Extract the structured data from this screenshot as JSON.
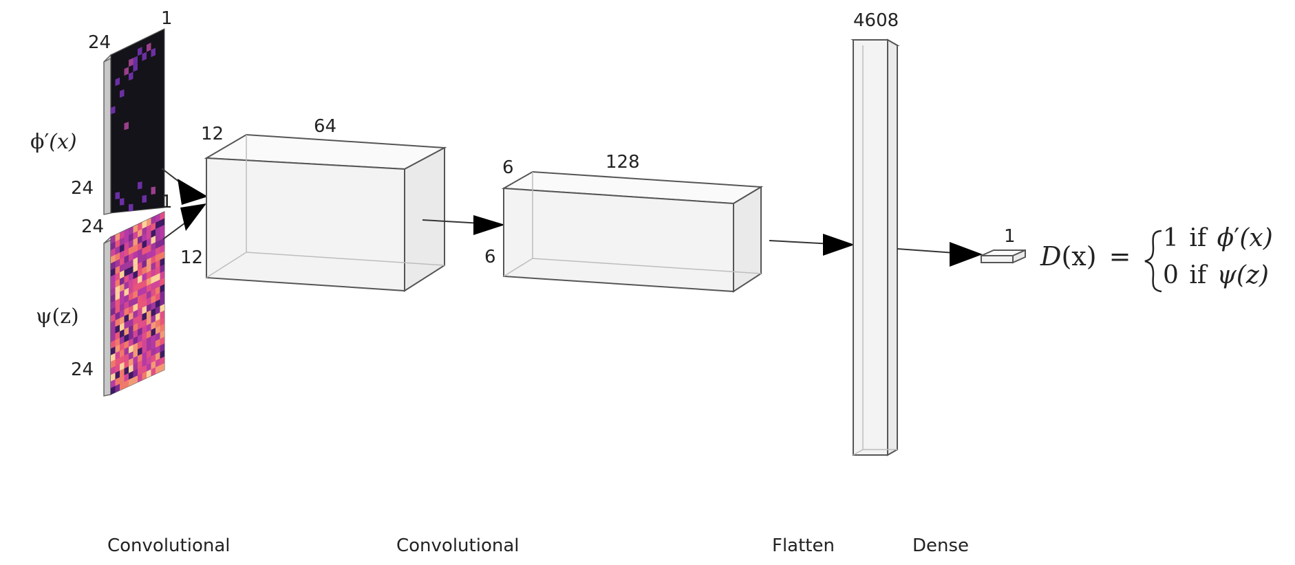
{
  "inputs": {
    "real": {
      "label_phi": "ϕ",
      "label_prime": "′",
      "label_arg": "(x)",
      "dim_top": "24",
      "dim_depth": "1",
      "dim_bottom": "24",
      "colors": {
        "background": "#141319",
        "pixel": "#6b2fa3"
      }
    },
    "fake": {
      "label_psi": "ψ",
      "label_arg": "(z)",
      "dim_top": "24",
      "dim_depth": "1",
      "dim_bottom": "24",
      "colors": [
        "#e8567a",
        "#d14596",
        "#b53aa6",
        "#f07a6a",
        "#a2379c",
        "#f29a76",
        "#7e2a8f",
        "#e04f86",
        "#fbd29a",
        "#3d1a63"
      ]
    }
  },
  "conv1": {
    "depth": "12",
    "width": "64",
    "height": "12"
  },
  "conv2": {
    "depth": "6",
    "width": "128",
    "height": "6"
  },
  "flatten": {
    "size": "4608"
  },
  "dense": {
    "size": "1"
  },
  "output": {
    "lhs": "D",
    "lhs_arg": "(x)",
    "equals": "=",
    "case1_value": "1",
    "case1_if": "if",
    "case1_phi": "ϕ",
    "case1_prime": "′",
    "case1_arg": "(x)",
    "case2_value": "0",
    "case2_if": "if",
    "case2_psi": "ψ",
    "case2_arg": "(z)"
  },
  "layers": {
    "conv1_label": "Convolutional",
    "conv2_label": "Convolutional",
    "flatten_label": "Flatten",
    "dense_label": "Dense"
  }
}
